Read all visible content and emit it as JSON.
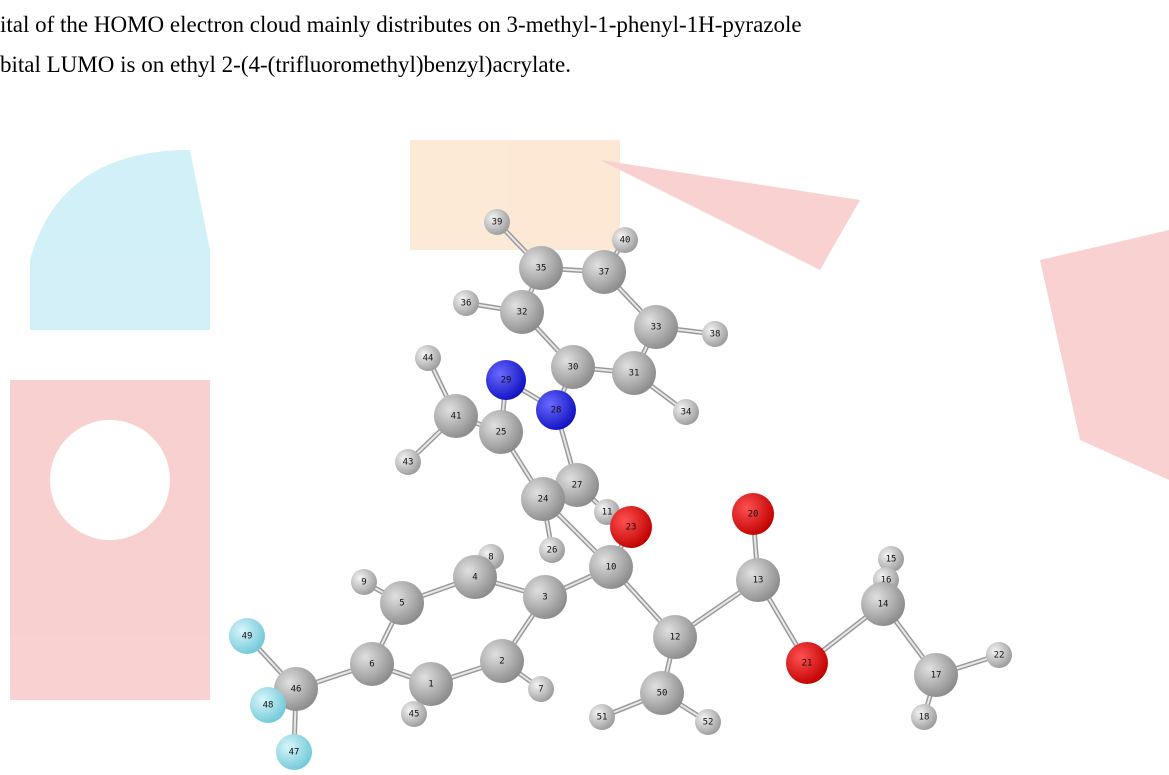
{
  "paragraph": {
    "lines": [
      "ital of the HOMO electron cloud mainly distributes on 3-methyl-1-phenyl-1H-pyrazole",
      "bital LUMO is on ethyl 2-(4-(trifluoromethyl)benzyl)acrylate."
    ]
  },
  "figure": {
    "atom_labels": [
      "39",
      "40",
      "35",
      "37",
      "36",
      "32",
      "33",
      "38",
      "30",
      "31",
      "29",
      "28",
      "44",
      "41",
      "25",
      "34",
      "43",
      "27",
      "24",
      "11",
      "23",
      "20",
      "26",
      "8",
      "10",
      "4",
      "15",
      "16",
      "14",
      "13",
      "9",
      "5",
      "3",
      "12",
      "21",
      "2",
      "7",
      "6",
      "49",
      "46",
      "1",
      "22",
      "17",
      "48",
      "45",
      "50",
      "18",
      "51",
      "52",
      "47"
    ]
  }
}
